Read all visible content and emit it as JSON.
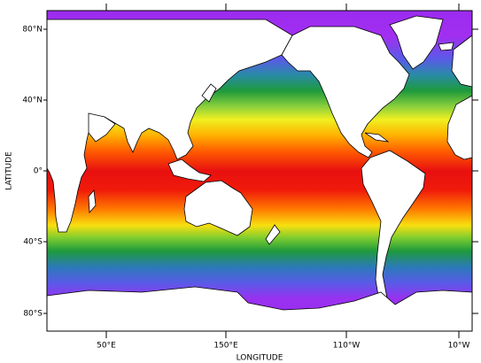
{
  "axes": {
    "x_label": "LONGITUDE",
    "y_label": "LATITUDE",
    "x_ticks": [
      "50°E",
      "150°E",
      "110°W",
      "10°W"
    ],
    "y_ticks": [
      "80°N",
      "40°N",
      "0°",
      "40°S",
      "80°S"
    ]
  }
}
